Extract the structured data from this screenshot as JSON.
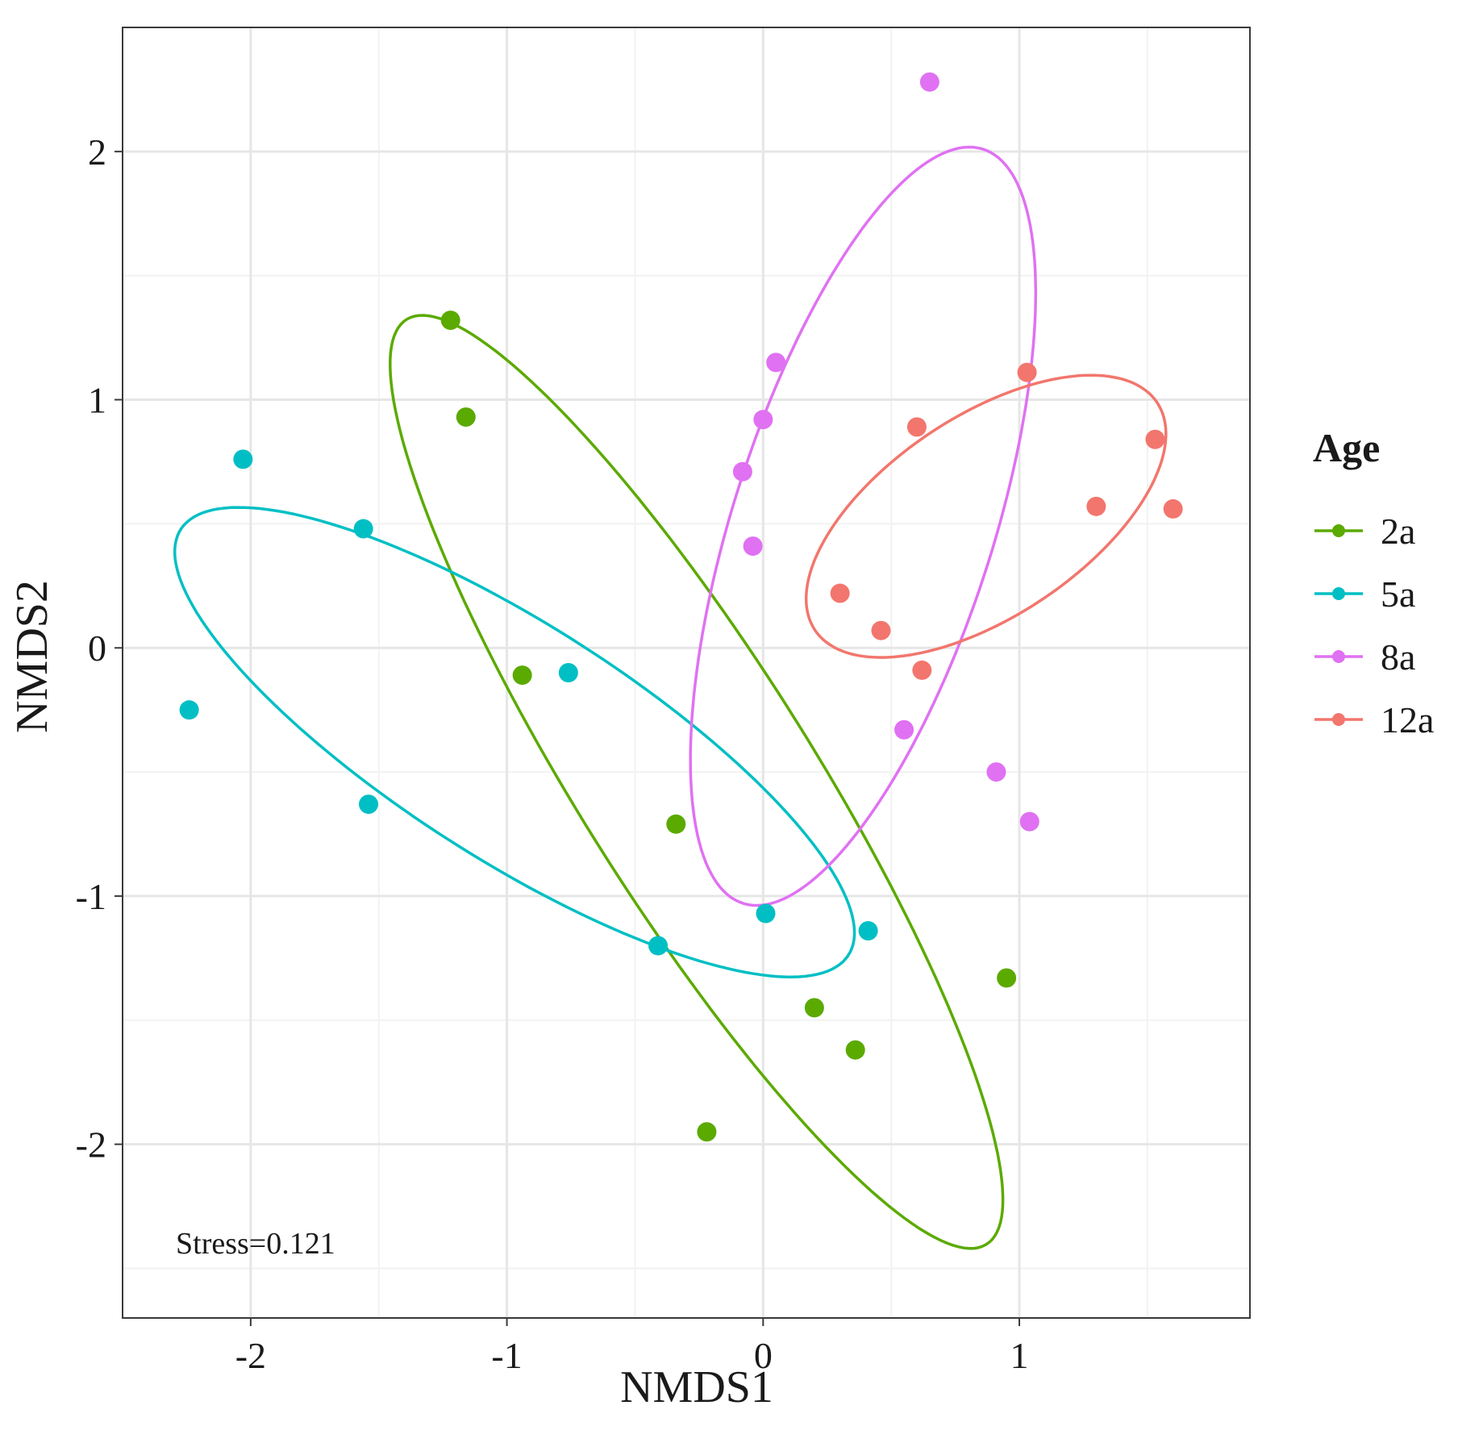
{
  "chart_data": {
    "type": "scatter",
    "xlabel": "NMDS1",
    "ylabel": "NMDS2",
    "xlim": [
      -2.5,
      1.9
    ],
    "ylim": [
      -2.7,
      2.5
    ],
    "x_ticks": [
      -2,
      -1,
      0,
      1
    ],
    "y_ticks": [
      -2,
      -1,
      0,
      1,
      2
    ],
    "x_tick_labels": [
      "-2",
      "-1",
      "0",
      "1"
    ],
    "y_tick_labels": [
      "-2",
      "-1",
      "0",
      "1",
      "2"
    ],
    "grid": true,
    "annotation": "Stress=0.121",
    "legend": {
      "title": "Age",
      "position": "right"
    },
    "series": [
      {
        "name": "2a",
        "color": "#5BAA00",
        "points": [
          {
            "x": -1.22,
            "y": 1.32
          },
          {
            "x": -1.16,
            "y": 0.93
          },
          {
            "x": -0.94,
            "y": -0.11
          },
          {
            "x": -0.34,
            "y": -0.71
          },
          {
            "x": 0.2,
            "y": -1.45
          },
          {
            "x": 0.36,
            "y": -1.62
          },
          {
            "x": -0.22,
            "y": -1.95
          },
          {
            "x": 0.95,
            "y": -1.33
          }
        ],
        "ellipse": {
          "center": [
            -0.26,
            -0.54
          ],
          "semi_major": 2.18,
          "semi_minor": 0.46,
          "angle_deg": -58.8
        }
      },
      {
        "name": "5a",
        "color": "#00BFC4",
        "points": [
          {
            "x": -2.03,
            "y": 0.76
          },
          {
            "x": -1.56,
            "y": 0.48
          },
          {
            "x": -2.24,
            "y": -0.25
          },
          {
            "x": -1.54,
            "y": -0.63
          },
          {
            "x": -0.76,
            "y": -0.1
          },
          {
            "x": -0.41,
            "y": -1.2
          },
          {
            "x": 0.01,
            "y": -1.07
          },
          {
            "x": 0.41,
            "y": -1.14
          }
        ],
        "ellipse": {
          "center": [
            -0.97,
            -0.38
          ],
          "semi_major": 1.56,
          "semi_minor": 0.47,
          "angle_deg": -33.5
        }
      },
      {
        "name": "8a",
        "color": "#E071F2",
        "points": [
          {
            "x": 0.65,
            "y": 2.28
          },
          {
            "x": 0.05,
            "y": 1.15
          },
          {
            "x": 0.0,
            "y": 0.92
          },
          {
            "x": -0.08,
            "y": 0.71
          },
          {
            "x": -0.04,
            "y": 0.41
          },
          {
            "x": 0.55,
            "y": -0.33
          },
          {
            "x": 0.91,
            "y": -0.5
          },
          {
            "x": 1.04,
            "y": -0.7
          }
        ],
        "ellipse": {
          "center": [
            0.39,
            0.49
          ],
          "semi_major": 1.59,
          "semi_minor": 0.51,
          "angle_deg": 73
        }
      },
      {
        "name": "12a",
        "color": "#F2766D",
        "points": [
          {
            "x": 1.03,
            "y": 1.11
          },
          {
            "x": 0.6,
            "y": 0.89
          },
          {
            "x": 1.53,
            "y": 0.84
          },
          {
            "x": 1.3,
            "y": 0.57
          },
          {
            "x": 1.6,
            "y": 0.56
          },
          {
            "x": 0.3,
            "y": 0.22
          },
          {
            "x": 0.46,
            "y": 0.07
          },
          {
            "x": 0.62,
            "y": -0.09
          }
        ],
        "ellipse": {
          "center": [
            0.87,
            0.53
          ],
          "semi_major": 0.81,
          "semi_minor": 0.4,
          "angle_deg": 35
        }
      }
    ]
  }
}
